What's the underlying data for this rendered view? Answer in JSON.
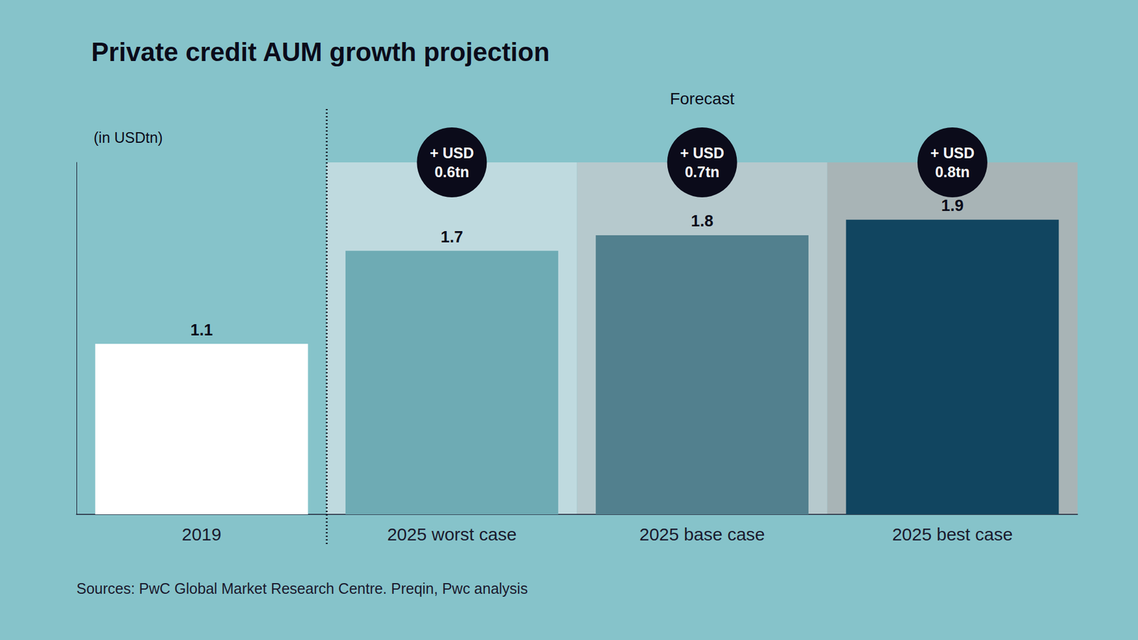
{
  "chart_data": {
    "type": "bar",
    "title": "Private credit AUM growth projection",
    "ylabel": "(in USDtn)",
    "categories": [
      "2019",
      "2025 worst case",
      "2025 base case",
      "2025 best case"
    ],
    "values": [
      1.1,
      1.7,
      1.8,
      1.9
    ],
    "colors": [
      "#ffffff",
      "#6eabb4",
      "#52808e",
      "#114560"
    ],
    "ylim": [
      0,
      2.27
    ],
    "yticks": [
      0
    ],
    "grid": false,
    "tick_labels": false,
    "data_labels": true,
    "section": {
      "label": "Forecast",
      "from": "2025 worst case",
      "to": "2025 best case"
    },
    "annotations": [
      {
        "category": "2025 worst case",
        "text": "+ USD 0.6tn"
      },
      {
        "category": "2025 base case",
        "text": "+ USD 0.7tn"
      },
      {
        "category": "2025 best case",
        "text": "+ USD 0.8tn"
      }
    ],
    "source": "Sources: PwC Global Market Research Centre. Preqin, Pwc analysis"
  }
}
